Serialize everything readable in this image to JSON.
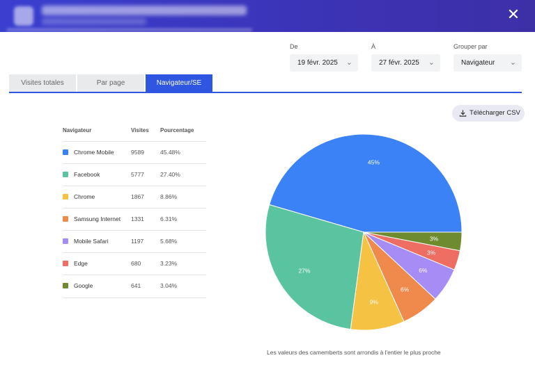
{
  "controls": {
    "from_label": "De",
    "from_value": "19 févr. 2025",
    "to_label": "À",
    "to_value": "27 févr. 2025",
    "group_label": "Grouper par",
    "group_value": "Navigateur"
  },
  "tabs": [
    {
      "label": "Visites totales",
      "active": false
    },
    {
      "label": "Par page",
      "active": false
    },
    {
      "label": "Navigateur/SE",
      "active": true
    }
  ],
  "download_label": "Télécharger CSV",
  "table": {
    "headers": [
      "Navigateur",
      "Visites",
      "Pourcentage"
    ],
    "rows": [
      {
        "name": "Chrome Mobile",
        "visits": "9589",
        "pct": "45.48%",
        "color": "#3b82f6"
      },
      {
        "name": "Facebook",
        "visits": "5777",
        "pct": "27.40%",
        "color": "#5ac4a0"
      },
      {
        "name": "Chrome",
        "visits": "1867",
        "pct": "8.86%",
        "color": "#f5c243"
      },
      {
        "name": "Samsung Internet",
        "visits": "1331",
        "pct": "6.31%",
        "color": "#ef8a4c"
      },
      {
        "name": "Mobile Safari",
        "visits": "1197",
        "pct": "5.68%",
        "color": "#a68cf5"
      },
      {
        "name": "Edge",
        "visits": "680",
        "pct": "3.23%",
        "color": "#ee6e63"
      },
      {
        "name": "Google",
        "visits": "641",
        "pct": "3.04%",
        "color": "#6f8b2f"
      }
    ]
  },
  "chart_data": {
    "type": "pie",
    "categories": [
      "Chrome Mobile",
      "Facebook",
      "Chrome",
      "Samsung Internet",
      "Mobile Safari",
      "Edge",
      "Google"
    ],
    "values": [
      45.48,
      27.4,
      8.86,
      6.31,
      5.68,
      3.23,
      3.04
    ],
    "labels": [
      "45%",
      "27%",
      "9%",
      "6%",
      "6%",
      "3%",
      "3%"
    ],
    "colors": [
      "#3b82f6",
      "#5ac4a0",
      "#f5c243",
      "#ef8a4c",
      "#a68cf5",
      "#ee6e63",
      "#6f8b2f"
    ]
  },
  "pie_note": "Les valeurs des camemberts sont arrondis à l'entier le plus proche"
}
